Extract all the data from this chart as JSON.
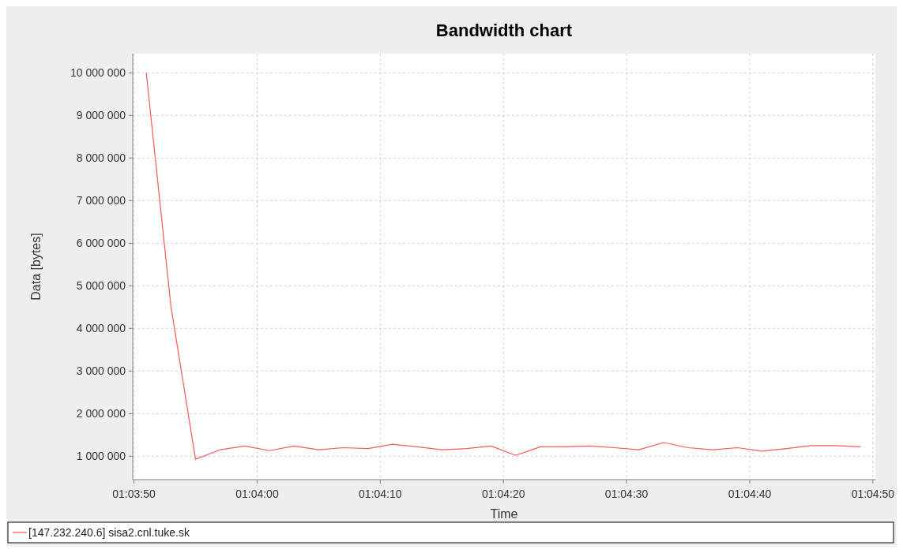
{
  "chart_data": {
    "type": "line",
    "title": "Bandwidth chart",
    "xlabel": "Time",
    "ylabel": "Data [bytes]",
    "x": [
      1.0641667,
      1.0647222,
      1.0652778,
      1.0658333,
      1.0663889,
      1.0669444,
      1.0675,
      1.0680556,
      1.0686111,
      1.0691667,
      1.0697222,
      1.0702778,
      1.0708333,
      1.0713889,
      1.0719444,
      1.0725,
      1.0730556,
      1.0736111,
      1.0741667,
      1.0747222,
      1.0752778,
      1.0758333,
      1.0763889,
      1.0769444,
      1.0775,
      1.0780556,
      1.0786111,
      1.0791667,
      1.0797222,
      1.0802778
    ],
    "series": [
      {
        "name": "[147.232.240.6] sisa2.cnl.tuke.sk",
        "color": "#ff5555",
        "values": [
          10000000,
          4520000,
          930000,
          1150000,
          1240000,
          1130000,
          1240000,
          1150000,
          1200000,
          1180000,
          1280000,
          1220000,
          1150000,
          1180000,
          1240000,
          1020000,
          1220000,
          1220000,
          1240000,
          1200000,
          1150000,
          1320000,
          1200000,
          1150000,
          1200000,
          1120000,
          1180000,
          1250000,
          1250000,
          1220000
        ]
      }
    ],
    "xlim": [
      1.0638611,
      1.0806111
    ],
    "xticks": [
      {
        "value": 1.0638889,
        "label": "01:03:50"
      },
      {
        "value": 1.0666667,
        "label": "01:04:00"
      },
      {
        "value": 1.0694444,
        "label": "01:04:10"
      },
      {
        "value": 1.0722222,
        "label": "01:04:20"
      },
      {
        "value": 1.075,
        "label": "01:04:30"
      },
      {
        "value": 1.0777778,
        "label": "01:04:40"
      },
      {
        "value": 1.0805556,
        "label": "01:04:50"
      }
    ],
    "ylim": [
      450000,
      10450000
    ],
    "yticks": [
      {
        "value": 1000000,
        "label": "1 000 000"
      },
      {
        "value": 2000000,
        "label": "2 000 000"
      },
      {
        "value": 3000000,
        "label": "3 000 000"
      },
      {
        "value": 4000000,
        "label": "4 000 000"
      },
      {
        "value": 5000000,
        "label": "5 000 000"
      },
      {
        "value": 6000000,
        "label": "6 000 000"
      },
      {
        "value": 7000000,
        "label": "7 000 000"
      },
      {
        "value": 8000000,
        "label": "8 000 000"
      },
      {
        "value": 9000000,
        "label": "9 000 000"
      },
      {
        "value": 10000000,
        "label": "10 000 000"
      }
    ],
    "grid": true,
    "legend": "bottom",
    "marker": "none",
    "line_style": "solid"
  }
}
